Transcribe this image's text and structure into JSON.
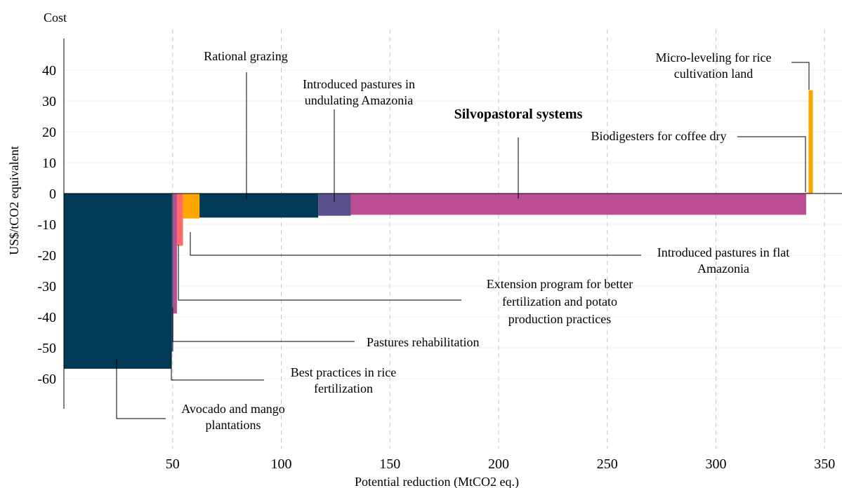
{
  "chart_data": {
    "type": "bar",
    "subtype": "marginal-abatement-cost-curve",
    "cost_label": "Cost",
    "ylabel": "US$/tCO2 equivalent",
    "xlabel": "Potential reduction (MtCO2 eq.)",
    "xlim": [
      0,
      360
    ],
    "ylim": [
      -83,
      53
    ],
    "xticks": [
      50,
      100,
      150,
      200,
      250,
      300,
      350
    ],
    "yticks": [
      40,
      30,
      20,
      10,
      0,
      -10,
      -20,
      -30,
      -40,
      -50,
      -60
    ],
    "grid": {
      "vertical": true,
      "horizontal": true
    },
    "measures": [
      {
        "name": "Avocado and mango plantations",
        "x_start": 0,
        "width": 49.6,
        "cost": -56.8,
        "color": "#003a57",
        "label_lines": [
          "Avocado and mango",
          "plantations"
        ]
      },
      {
        "name": "Best practices in rice fertilization",
        "x_start": 49.6,
        "width": 0.7,
        "cost": -51.2,
        "color": "#40566e",
        "label_lines": [
          "Best practices in rice",
          "fertilization"
        ]
      },
      {
        "name": "Pastures rehabilitation",
        "x_start": 50.3,
        "width": 1.7,
        "cost": -38.9,
        "color": "#bb4e93",
        "label_lines": [
          "Pastures rehabilitation"
        ]
      },
      {
        "name": "Extension program for better fertilization and potato production practices",
        "x_start": 52.0,
        "width": 2.8,
        "cost": -16.9,
        "color": "#ff6b6b",
        "label_lines": [
          "Extension program for better",
          "fertilization and potato",
          "production practices"
        ]
      },
      {
        "name": "Introduced pastures in flat Amazonia",
        "x_start": 54.8,
        "width": 7.6,
        "cost": -8.1,
        "color": "#ffa500",
        "label_lines": [
          "Introduced pastures in flat",
          "Amazonia"
        ]
      },
      {
        "name": "Rational grazing",
        "x_start": 62.4,
        "width": 54.6,
        "cost": -7.8,
        "color": "#003a57",
        "label_lines": [
          "Rational grazing"
        ]
      },
      {
        "name": "Introduced pastures in undulating Amazonia",
        "x_start": 117.0,
        "width": 15.0,
        "cost": -7.2,
        "color": "#584f8d",
        "label_lines": [
          "Introduced pastures in",
          "undulating Amazonia"
        ]
      },
      {
        "name": "Silvopastoral systems",
        "x_start": 132.0,
        "width": 209.5,
        "cost": -6.9,
        "color": "#bb4e93",
        "label_lines": [
          "Silvopastoral systems"
        ],
        "bold": true
      },
      {
        "name": "Biodigesters for coffee dry",
        "x_start": 341.5,
        "width": 1.1,
        "cost": 0.3,
        "color": "#ffa500",
        "label_lines": [
          "Biodigesters for coffee dry"
        ]
      },
      {
        "name": "Micro-leveling for rice cultivation land",
        "x_start": 342.6,
        "width": 2.0,
        "cost": 33.5,
        "color": "#ffa500",
        "label_lines": [
          "Micro-leveling for rice",
          "cultivation land"
        ]
      }
    ]
  }
}
